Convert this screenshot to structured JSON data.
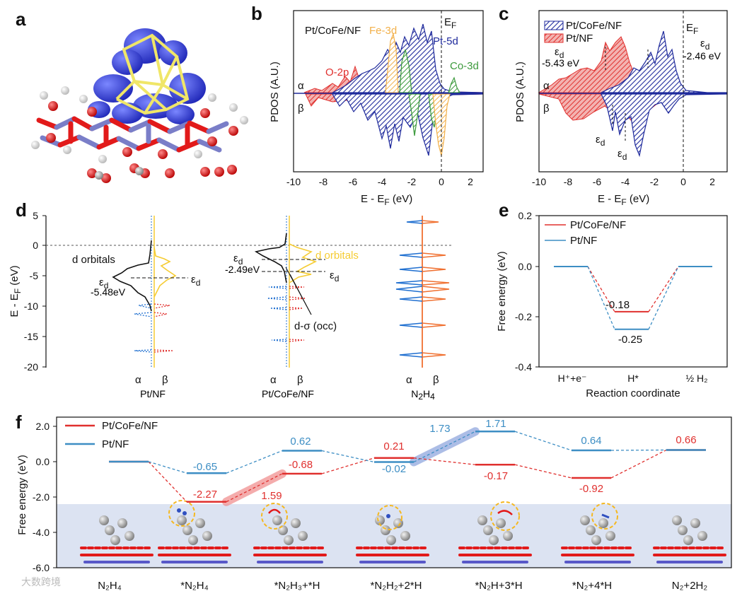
{
  "panel_labels": {
    "a": "a",
    "b": "b",
    "c": "c",
    "d": "d",
    "e": "e",
    "f": "f"
  },
  "colors": {
    "red": "#e0302e",
    "blue": "#1f2a9c",
    "sky": "#3d8ec4",
    "orange": "#f2b04a",
    "green": "#3c9a3c",
    "yellow": "#f5cc33",
    "band": "#dce3f2"
  },
  "panel_b": {
    "title": "Pt/CoFe/NF",
    "ylabel": "PDOS (A.U.)",
    "xlabel": "E - E",
    "xlabel_sub": "F",
    "xlabel_unit": " (eV)",
    "xticks": [
      "-10",
      "-8",
      "-6",
      "-4",
      "-2",
      "0",
      "2"
    ],
    "alpha": "α",
    "beta": "β",
    "ef": "E",
    "ef_sub": "F",
    "labels": {
      "fe": "Fe-3d",
      "pt": "Pt-5d",
      "co": "Co-3d",
      "o": "O-2p"
    }
  },
  "panel_c": {
    "legend": [
      "Pt/CoFe/NF",
      "Pt/NF"
    ],
    "ylabel": "PDOS (A.U.)",
    "xlabel": "E - E",
    "xlabel_sub": "F",
    "xlabel_unit": " (eV)",
    "xticks": [
      "-10",
      "-8",
      "-6",
      "-4",
      "-2",
      "0",
      "2"
    ],
    "alpha": "α",
    "beta": "β",
    "ef": "E",
    "ef_sub": "F",
    "eps": "ε",
    "eps_sub": "d",
    "val_left": "-5.43 eV",
    "val_right": "-2.46 eV"
  },
  "panel_d": {
    "ylabel": "E - E",
    "ylabel_sub": "F",
    "ylabel_unit": " (eV)",
    "yticks": [
      "5",
      "0",
      "-5",
      "-10",
      "-15",
      "-20"
    ],
    "cols": [
      {
        "name": "Pt/NF",
        "alpha": "α",
        "beta": "β"
      },
      {
        "name": "Pt/CoFe/NF",
        "alpha": "α",
        "beta": "β"
      },
      {
        "name": "N",
        "name_full": "N2H4",
        "alpha": "α",
        "beta": "β"
      }
    ],
    "n2h4_parts": [
      "N",
      "2",
      "H",
      "4"
    ],
    "d_orbitals": "d orbitals",
    "eps": "ε",
    "eps_sub": "d",
    "val_ptnf": "-5.48eV",
    "val_ptcofe": "-2.49eV",
    "dsigma": "d-σ (occ)"
  },
  "panel_e": {
    "legend": [
      "Pt/CoFe/NF",
      "Pt/NF"
    ],
    "ylabel": "Free energy (eV)",
    "xlabel": "Reaction coordinate",
    "yticks": [
      "0.2",
      "0.0",
      "-0.2",
      "-0.4"
    ],
    "xcats": [
      "H⁺+e⁻",
      "H*",
      "½ H₂"
    ],
    "chart_data": {
      "type": "line",
      "categories": [
        "H⁺+e⁻",
        "H*",
        "½ H₂"
      ],
      "series": [
        {
          "name": "Pt/CoFe/NF",
          "values": [
            0.0,
            -0.18,
            0.0
          ]
        },
        {
          "name": "Pt/NF",
          "values": [
            0.0,
            -0.25,
            0.0
          ]
        }
      ],
      "ylabel": "Free energy (eV)",
      "xlabel": "Reaction coordinate",
      "ylim": [
        -0.4,
        0.2
      ]
    },
    "val_labels": [
      "-0.18",
      "-0.25"
    ]
  },
  "panel_f": {
    "legend": [
      "Pt/CoFe/NF",
      "Pt/NF"
    ],
    "ylabel": "Free energy (eV)",
    "yticks": [
      "2.0",
      "0.0",
      "-2.0",
      "-4.0",
      "-6.0"
    ],
    "xcats": [
      "N₂H₄",
      "*N₂H₄",
      "*N₂H₃+*H",
      "*N₂H₂+2*H",
      "*N₂H+3*H",
      "*N₂+4*H",
      "N₂+2H₂"
    ],
    "chart_data": {
      "type": "line",
      "categories": [
        "N2H4",
        "*N2H4",
        "*N2H3+*H",
        "*N2H2+2*H",
        "*N2H+3*H",
        "*N2+4*H",
        "N2+2H2"
      ],
      "series": [
        {
          "name": "Pt/CoFe/NF",
          "values": [
            0.0,
            -2.27,
            -0.68,
            0.21,
            -0.17,
            -0.92,
            0.66
          ]
        },
        {
          "name": "Pt/NF",
          "values": [
            0.0,
            -0.65,
            0.62,
            -0.02,
            1.71,
            0.64,
            0.66
          ]
        }
      ],
      "ylabel": "Free energy (eV)",
      "ylim": [
        -6.0,
        2.0
      ]
    },
    "red_labels": [
      "-2.27",
      "-0.68",
      "0.21",
      "-0.17",
      "-0.92",
      "0.66"
    ],
    "blue_labels": [
      "-0.65",
      "0.62",
      "-0.02",
      "1.71",
      "0.64"
    ],
    "barrier_red": "1.59",
    "barrier_blue": "1.73"
  },
  "watermark": "大数跨境"
}
